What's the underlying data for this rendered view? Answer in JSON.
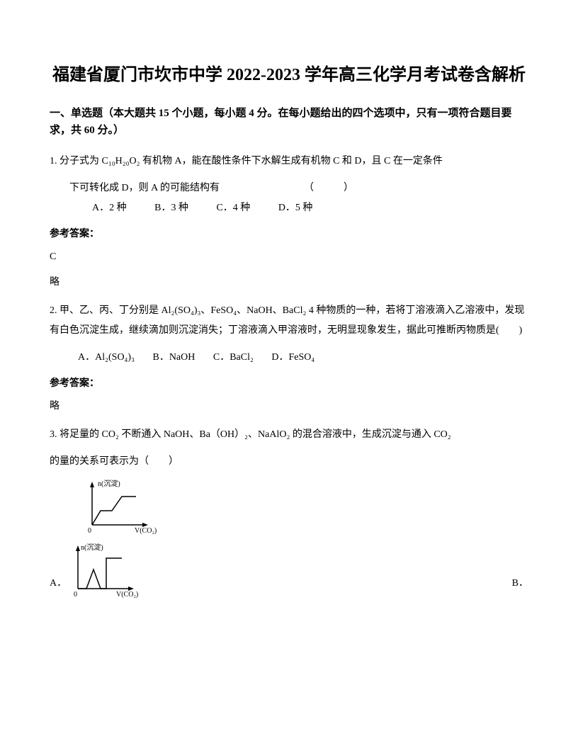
{
  "title": "福建省厦门市坎市中学 2022-2023 学年高三化学月考试卷含解析",
  "sectionHeader": "一、单选题（本大题共 15 个小题，每小题 4 分。在每小题给出的四个选项中，只有一项符合题目要求，共 60 分。）",
  "q1": {
    "line1": "1. 分子式为 C₁₀H₂₀O₂ 有机物 A，能在酸性条件下水解生成有机物 C 和 D，且 C 在一定条件",
    "line2": "下可转化成 D，则 A 的可能结构有　　　　　　　　　（　　　）",
    "optA": "A．2 种",
    "optB": "B．3 种",
    "optC": "C．4 种",
    "optD": "D．5 种",
    "answerLabel": "参考答案：",
    "answer": "C",
    "omit": "略"
  },
  "q2": {
    "line1": "2. 甲、乙、丙、丁分别是 Al₂(SO₄)₃、FeSO₄、NaOH、BaCl₂ 4 种物质的一种，若将丁溶液滴入乙溶液中，发现有白色沉淀生成，继续滴加则沉淀消失；丁溶液滴入甲溶液时，无明显现象发生，据此可推断丙物质是(　　)",
    "optA": "A．Al₂(SO₄)₃",
    "optB": "B．NaOH",
    "optC": "C．BaCl₂",
    "optD": "D．FeSO₄",
    "answerLabel": "参考答案：",
    "omit": "略"
  },
  "q3": {
    "line1": "3. 将足量的 CO₂ 不断通入 NaOH、Ba（OH）₂、NaAlO₂ 的混合溶液中，生成沉淀与通入 CO₂",
    "line2": "的量的关系可表示为（　　）",
    "labelA": "A．",
    "labelB": "B．",
    "chartA": {
      "yLabel": "n(沉淀)",
      "xLabel": "V(CO₂)",
      "stroke": "#000000",
      "strokeWidth": 1.5,
      "points": [
        [
          10,
          65
        ],
        [
          10,
          10
        ],
        [
          18,
          10
        ],
        [
          18,
          65
        ],
        [
          22,
          65
        ],
        [
          22,
          45
        ],
        [
          35,
          45
        ],
        [
          50,
          25
        ],
        [
          50,
          20
        ],
        [
          70,
          20
        ]
      ]
    },
    "chartB": {
      "yLabel": "n(沉淀)",
      "xLabel": "V(CO₂)",
      "stroke": "#000000",
      "strokeWidth": 1.5,
      "points": [
        [
          10,
          65
        ],
        [
          10,
          10
        ],
        [
          18,
          10
        ],
        [
          18,
          65
        ],
        [
          25,
          65
        ],
        [
          35,
          35
        ],
        [
          45,
          65
        ],
        [
          50,
          65
        ],
        [
          50,
          20
        ],
        [
          70,
          20
        ]
      ]
    }
  }
}
